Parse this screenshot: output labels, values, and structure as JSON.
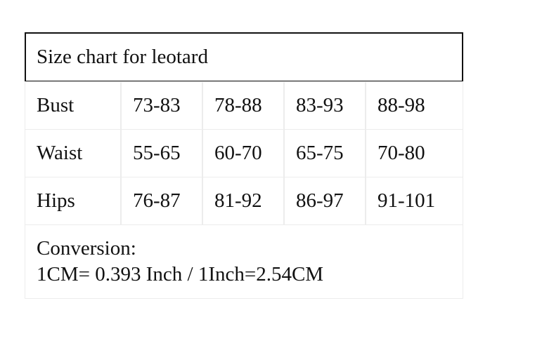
{
  "table": {
    "title": "Size chart for leotard",
    "rows": [
      [
        "Bust",
        "73-83",
        "78-88",
        "83-93",
        "88-98"
      ],
      [
        "Waist",
        "55-65",
        "60-70",
        "65-75",
        "70-80"
      ],
      [
        "Hips",
        "76-87",
        "81-92",
        "86-97",
        "91-101"
      ]
    ],
    "note": [
      "Conversion:",
      "1CM= 0.393 Inch / 1Inch=2.54CM"
    ]
  }
}
